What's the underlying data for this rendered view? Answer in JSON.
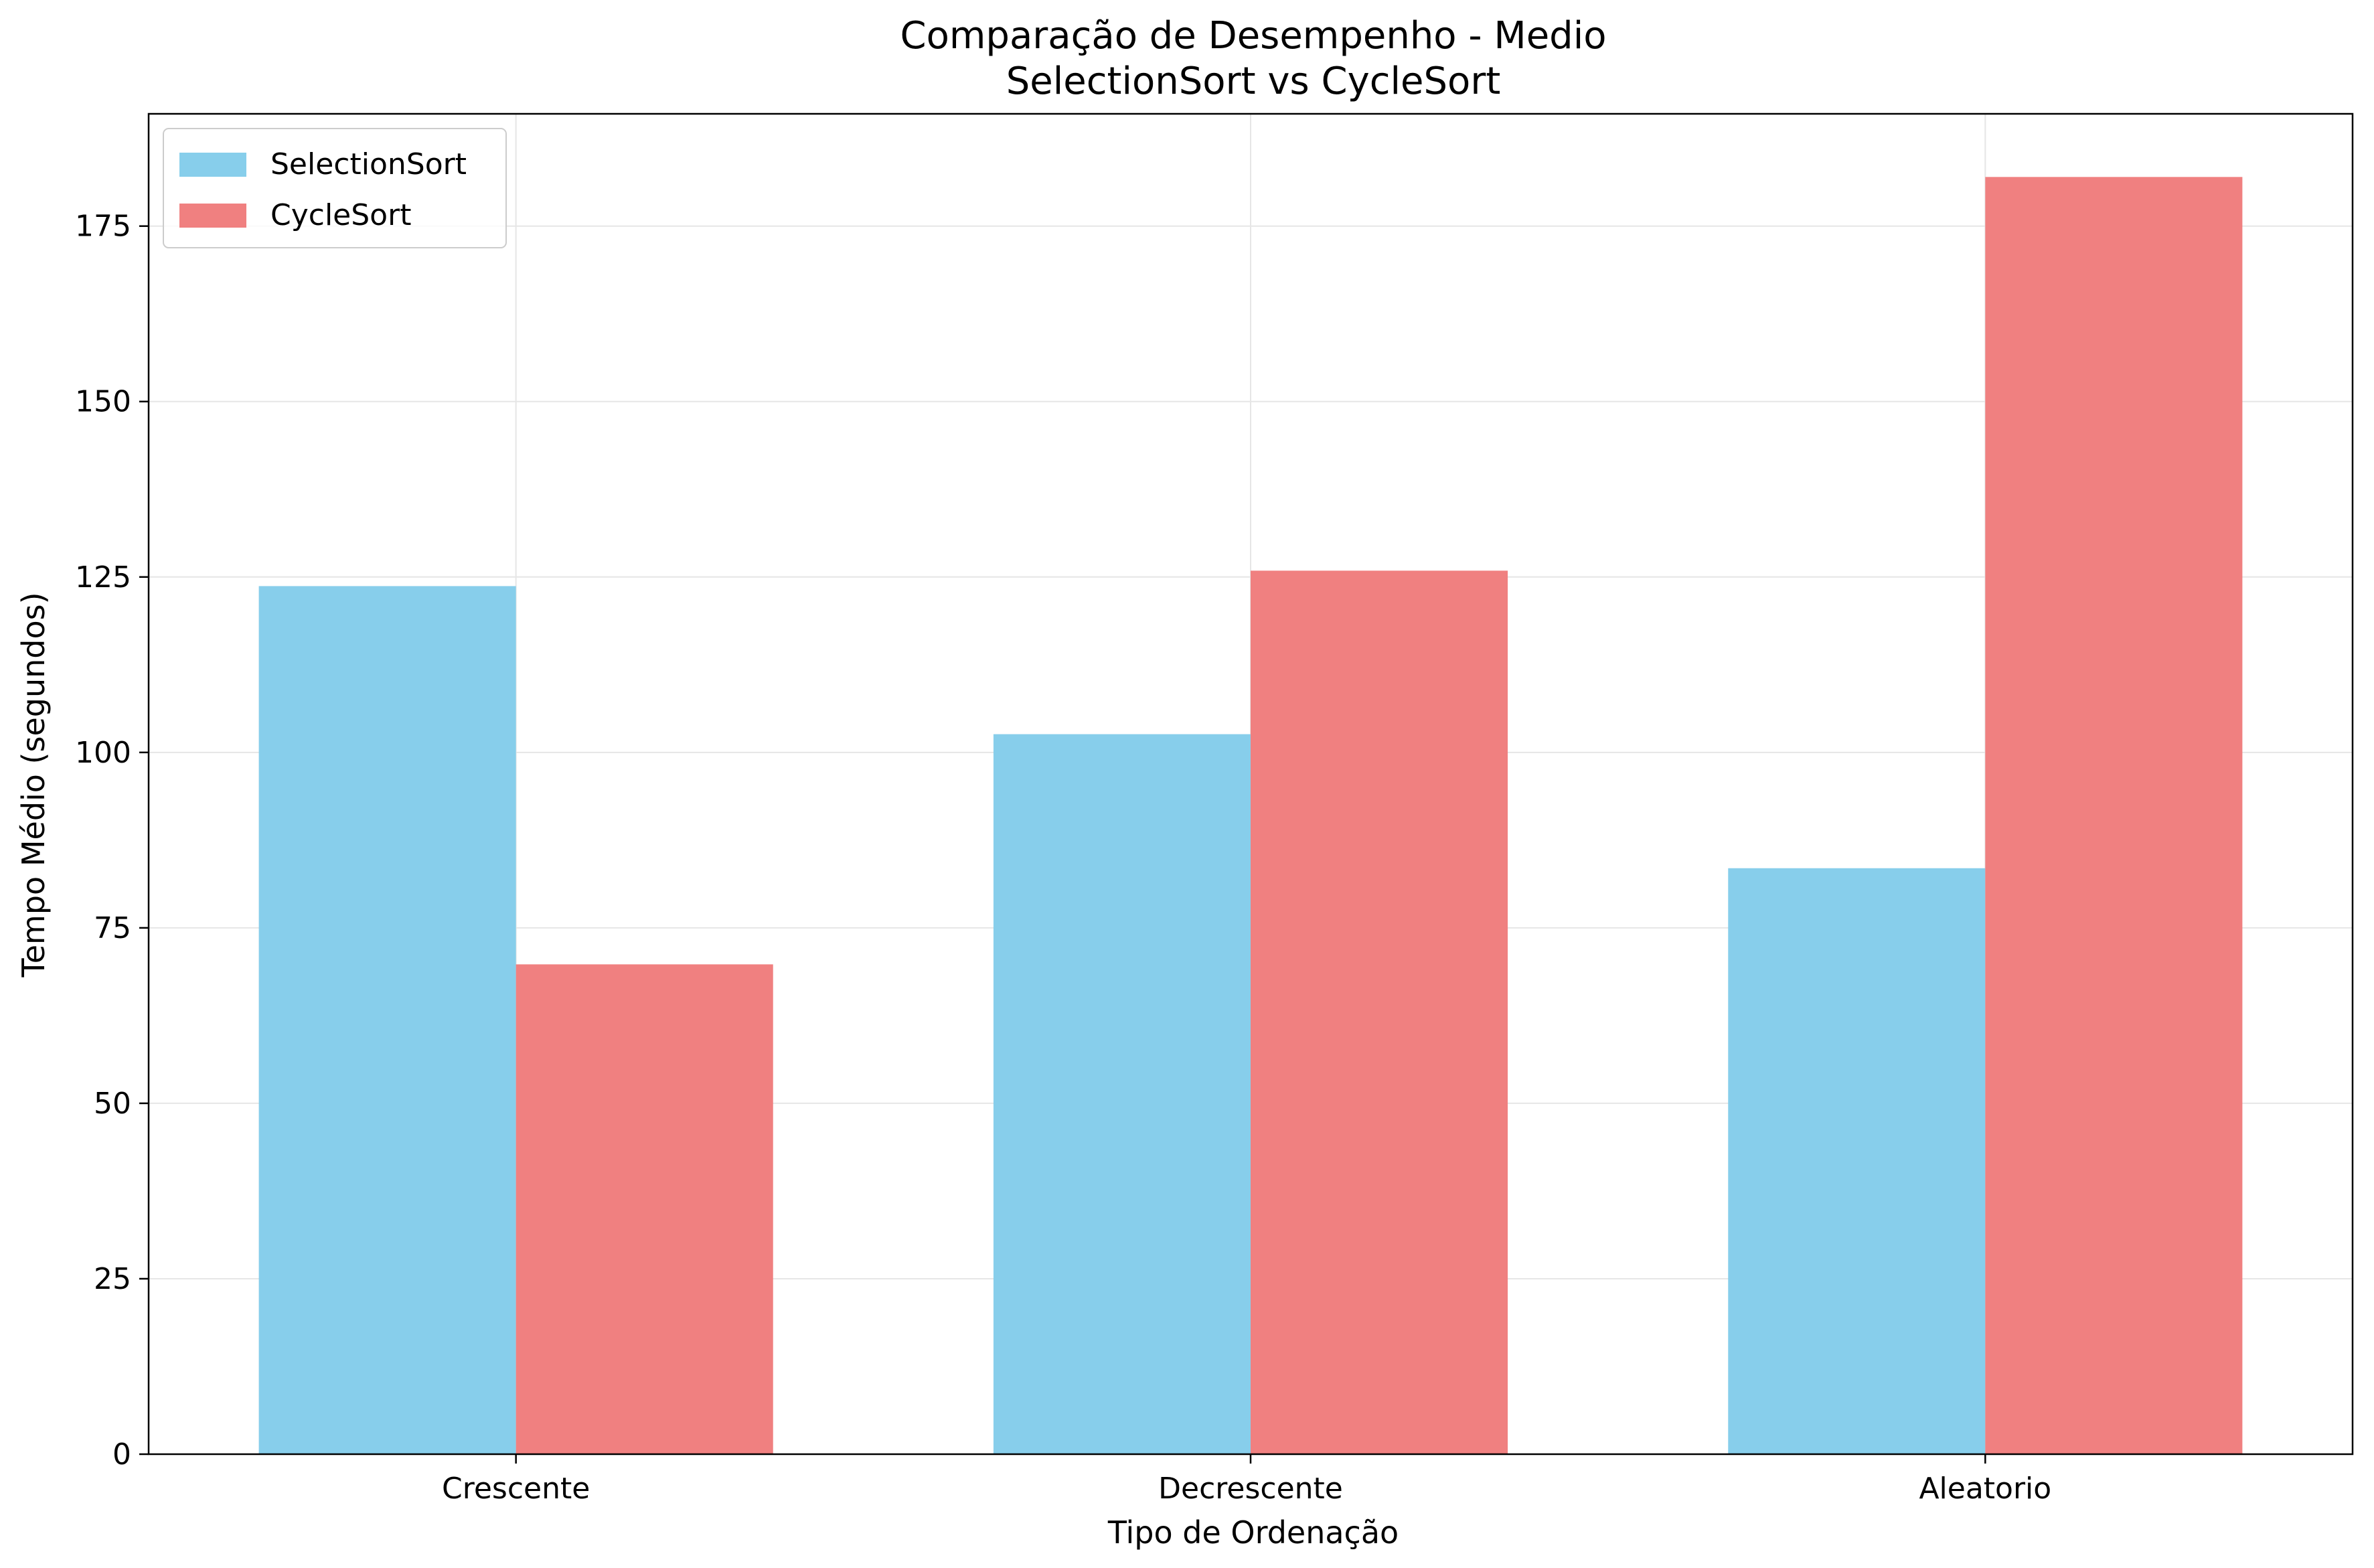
{
  "chart_data": {
    "type": "bar",
    "title": "Comparação de Desempenho - Medio",
    "subtitle": "SelectionSort vs CycleSort",
    "xlabel": "Tipo de Ordenação",
    "ylabel": "Tempo Médio (segundos)",
    "categories": [
      "Crescente",
      "Decrescente",
      "Aleatorio"
    ],
    "series": [
      {
        "name": "SelectionSort",
        "values": [
          123.7,
          102.6,
          83.5
        ],
        "color": "#87CEEB"
      },
      {
        "name": "CycleSort",
        "values": [
          69.8,
          125.9,
          182.0
        ],
        "color": "#F08080"
      }
    ],
    "ylim": [
      0,
      191
    ],
    "yticks": [
      0,
      25,
      50,
      75,
      100,
      125,
      150,
      175
    ],
    "grid": true,
    "legend_position": "top-left"
  }
}
